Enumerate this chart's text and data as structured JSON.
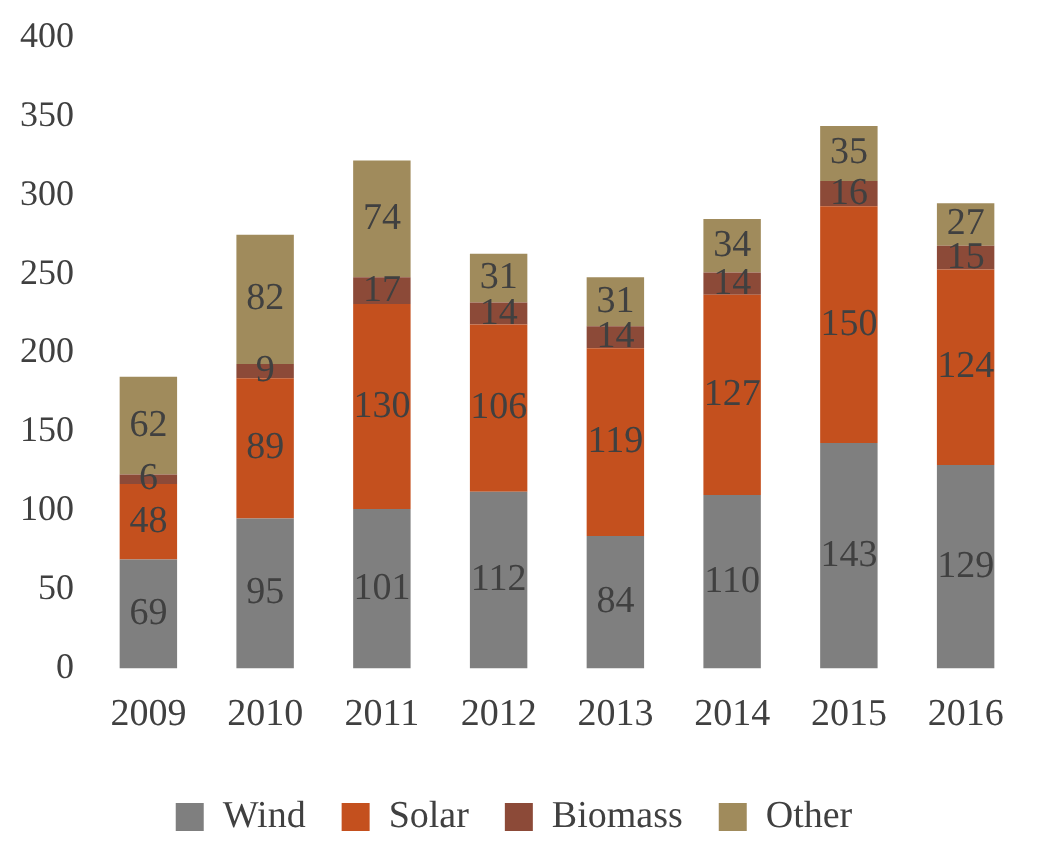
{
  "chart_data": {
    "type": "bar",
    "stacked": true,
    "categories": [
      "2009",
      "2010",
      "2011",
      "2012",
      "2013",
      "2014",
      "2015",
      "2016"
    ],
    "series": [
      {
        "name": "Wind",
        "color": "#7f7f7f",
        "values": [
          69,
          95,
          101,
          112,
          84,
          110,
          143,
          129
        ]
      },
      {
        "name": "Solar",
        "color": "#c4501e",
        "values": [
          48,
          89,
          130,
          106,
          119,
          127,
          150,
          124
        ]
      },
      {
        "name": "Biomass",
        "color": "#8c4a38",
        "values": [
          6,
          9,
          17,
          14,
          14,
          14,
          16,
          15
        ]
      },
      {
        "name": "Other",
        "color": "#a08b5c",
        "values": [
          62,
          82,
          74,
          31,
          31,
          34,
          35,
          27
        ]
      }
    ],
    "ylim": [
      0,
      400
    ],
    "yticks": [
      0,
      50,
      100,
      150,
      200,
      250,
      300,
      350,
      400
    ],
    "grid": false,
    "legend": "bottom",
    "data_labels": true
  }
}
